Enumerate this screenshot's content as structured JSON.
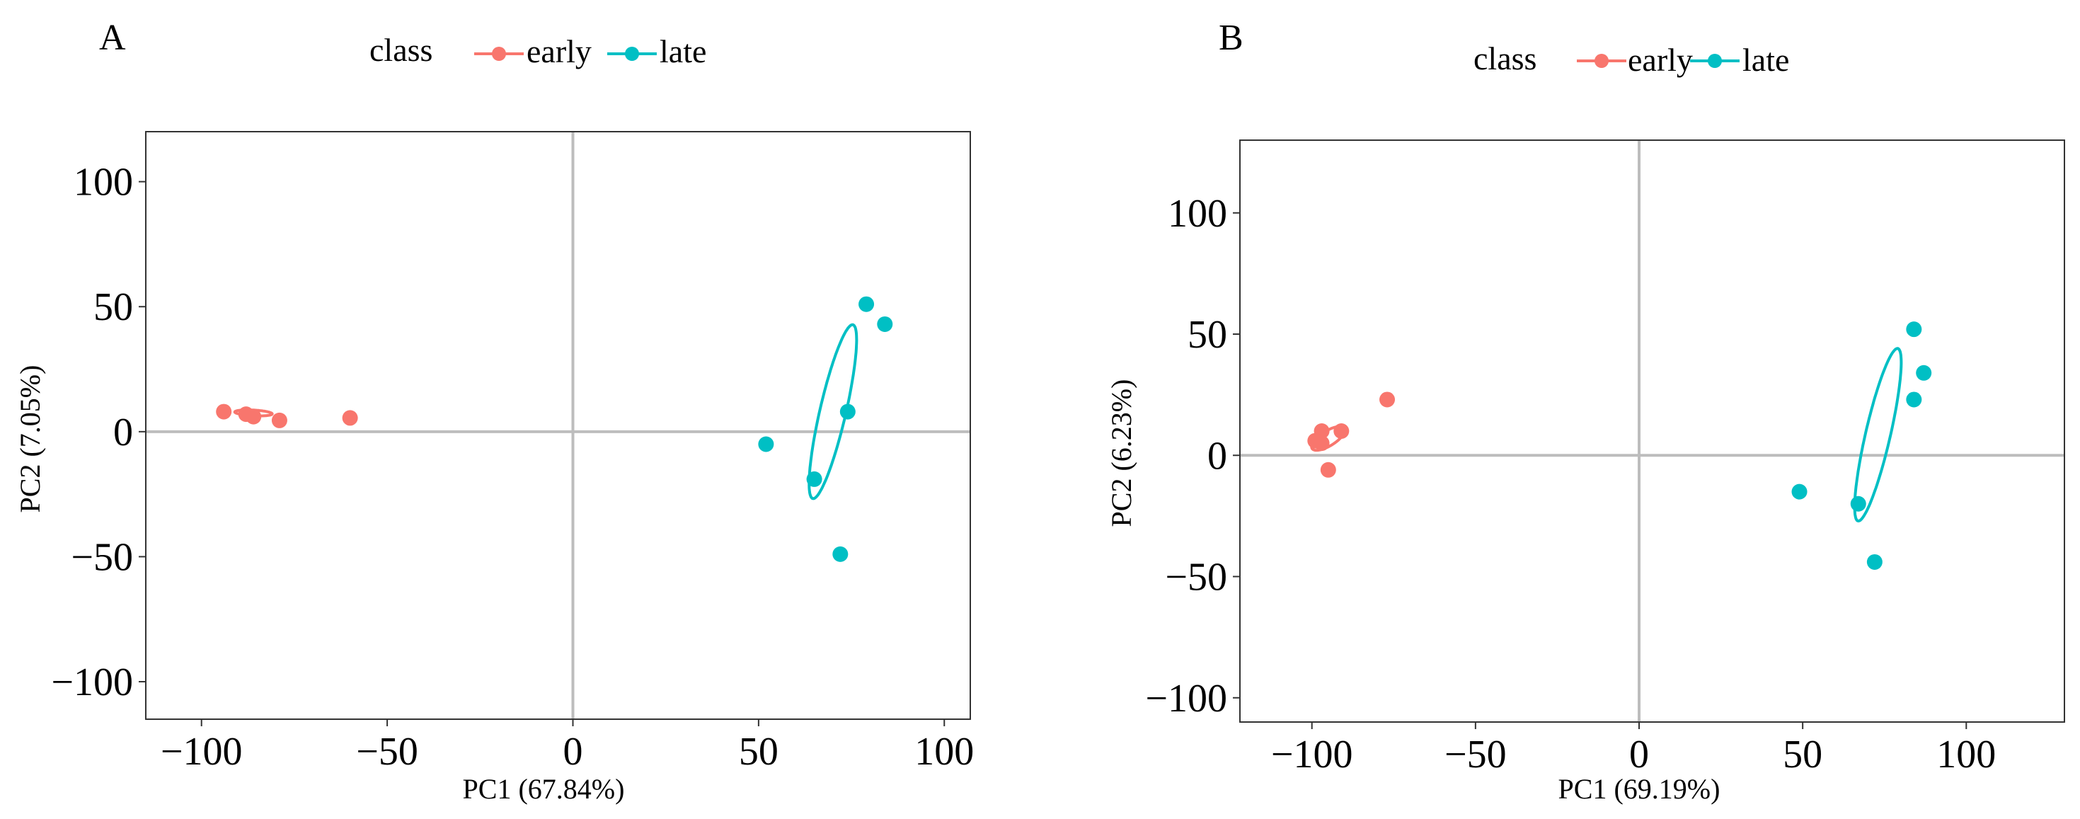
{
  "colors": {
    "early": "#F8766D",
    "late": "#00BFC4"
  },
  "chart_data": [
    {
      "panel": "A",
      "type": "scatter",
      "legend": {
        "title": "class",
        "entries": [
          "early",
          "late"
        ],
        "placement": "top-center"
      },
      "xlabel": "PC1 (67.84%)",
      "ylabel": "PC2 (7.05%)",
      "xlim": [
        -115,
        107
      ],
      "ylim": [
        -115,
        120
      ],
      "xticks": [
        -100,
        -50,
        0,
        50,
        100
      ],
      "xtick_labels": [
        "−100",
        "−50",
        "0",
        "50",
        "100"
      ],
      "yticks": [
        -100,
        -50,
        0,
        50,
        100
      ],
      "ytick_labels": [
        "−100",
        "−50",
        "0",
        "50",
        "100"
      ],
      "series": [
        {
          "name": "early",
          "points": [
            [
              -94,
              8
            ],
            [
              -88,
              7
            ],
            [
              -86,
              6
            ],
            [
              -79,
              4.5
            ],
            [
              -60,
              5.5
            ]
          ],
          "ellipse": {
            "cx": -86,
            "cy": 7.5,
            "rx": 26.5,
            "ry": 4,
            "angle": -3
          }
        },
        {
          "name": "late",
          "points": [
            [
              79,
              51
            ],
            [
              84,
              43
            ],
            [
              74,
              8
            ],
            [
              52,
              -5
            ],
            [
              65,
              -19
            ],
            [
              72,
              -49
            ]
          ],
          "ellipse": {
            "cx": 70,
            "cy": 8,
            "rx": 126,
            "ry": 18.4,
            "angle": 77
          }
        }
      ]
    },
    {
      "panel": "B",
      "type": "scatter",
      "legend": {
        "title": "class",
        "entries": [
          "early",
          "late"
        ],
        "placement": "top-center"
      },
      "xlabel": "PC1 (69.19%)",
      "ylabel": "PC2 (6.23%)",
      "xlim": [
        -122,
        130
      ],
      "ylim": [
        -110,
        130
      ],
      "xticks": [
        -100,
        -50,
        0,
        50,
        100
      ],
      "xtick_labels": [
        "−100",
        "−50",
        "0",
        "50",
        "100"
      ],
      "yticks": [
        -100,
        -50,
        0,
        50,
        100
      ],
      "ytick_labels": [
        "−100",
        "−50",
        "0",
        "50",
        "100"
      ],
      "series": [
        {
          "name": "early",
          "points": [
            [
              -77,
              23
            ],
            [
              -91,
              10
            ],
            [
              -97,
              10
            ],
            [
              -99,
              6
            ],
            [
              -97,
              5
            ],
            [
              -95,
              -6
            ]
          ],
          "ellipse": {
            "cx": -95,
            "cy": 7,
            "rx": 27,
            "ry": 10.5,
            "angle": 32
          }
        },
        {
          "name": "late",
          "points": [
            [
              84,
              52
            ],
            [
              87,
              34
            ],
            [
              84,
              23
            ],
            [
              49,
              -15
            ],
            [
              67,
              -20
            ],
            [
              72,
              -44
            ]
          ],
          "ellipse": {
            "cx": 73,
            "cy": 8.5,
            "rx": 125,
            "ry": 17.5,
            "angle": 77
          }
        }
      ]
    }
  ]
}
